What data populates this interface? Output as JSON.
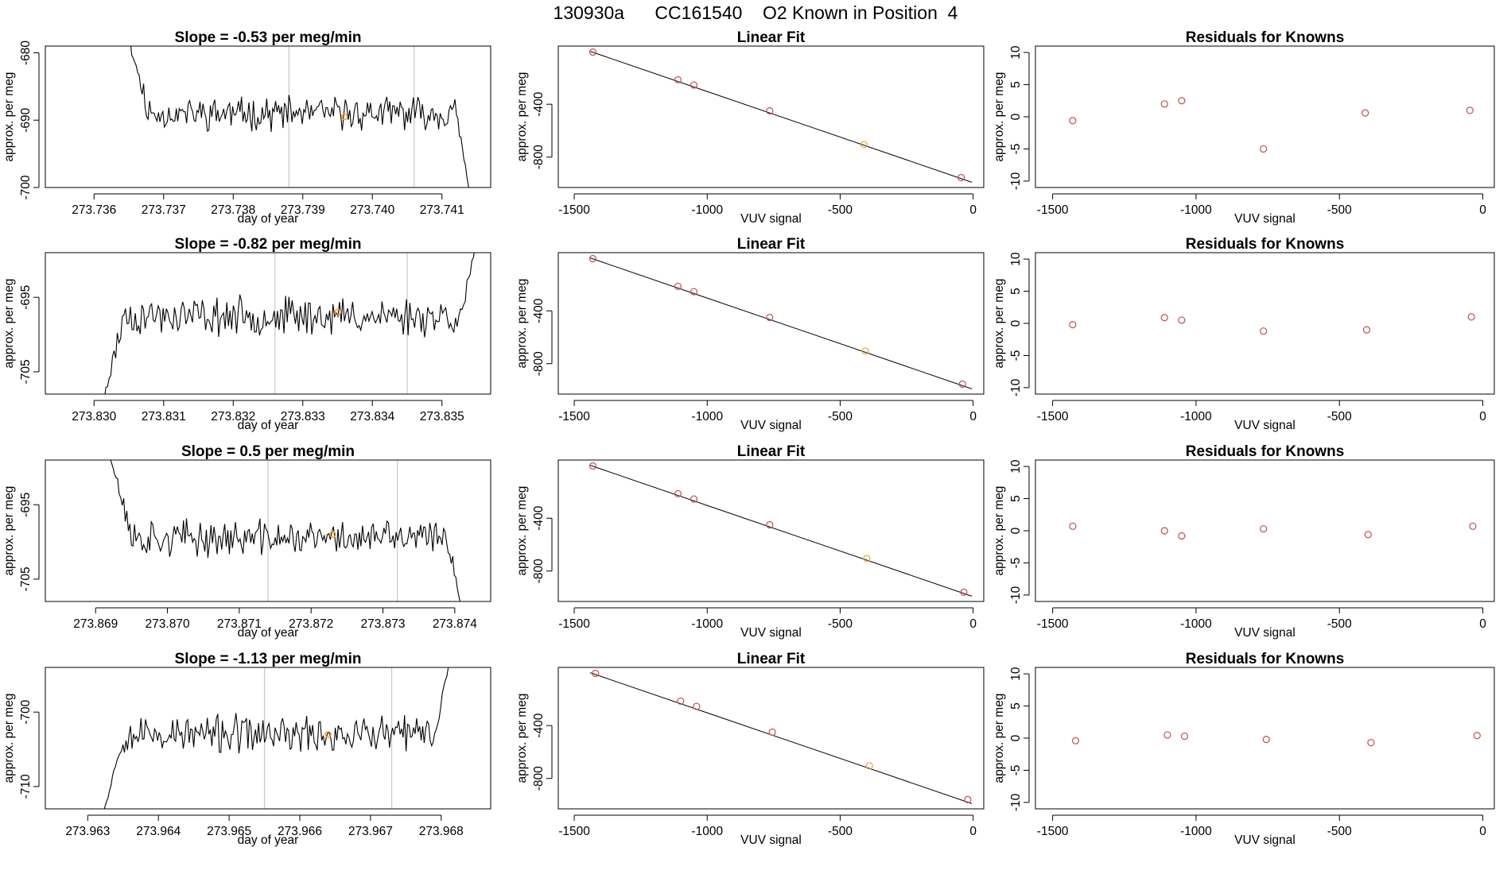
{
  "figure": {
    "title": "130930a      CC161540    O2 Known in Position  4"
  },
  "colors": {
    "trace": "#000000",
    "vline": "#c8c8c8",
    "fit_line": "#000000",
    "known_point": "#c0504d",
    "sample_point": "#f0a030",
    "axis": "#000000"
  },
  "chart_data": [
    {
      "type": "line",
      "title": "Slope =  -0.53  per meg/min",
      "xlabel": "day of year",
      "ylabel": "approx. per meg",
      "xlim": [
        273.7353,
        273.7417
      ],
      "ylim": [
        -700,
        -679
      ],
      "xticks": [
        273.736,
        273.737,
        273.738,
        273.739,
        273.74,
        273.741
      ],
      "xtick_labels": [
        "273.736",
        "273.737",
        "273.738",
        "273.739",
        "273.740",
        "273.741"
      ],
      "yticks": [
        -700,
        -690,
        -680
      ],
      "ytick_labels": [
        "-700",
        "-690",
        "-680"
      ],
      "vlines": [
        273.7388,
        273.7406
      ],
      "marker": {
        "x": 273.7396,
        "y": -689.5
      },
      "trace": {
        "x_start": 273.7365,
        "x_end": 273.7414,
        "level": -689,
        "noise": 1.8,
        "start_value": -678,
        "end_value": -701,
        "seed": 11
      }
    },
    {
      "type": "scatter",
      "title": "Linear Fit",
      "xlabel": "VUV signal",
      "ylabel": "approx. per meg",
      "xlim": [
        -1560,
        40
      ],
      "ylim": [
        -1030,
        40
      ],
      "xticks": [
        -1500,
        -1000,
        -500,
        0
      ],
      "xtick_labels": [
        "-1500",
        "-1000",
        "-500",
        "0"
      ],
      "yticks": [
        -800,
        -400
      ],
      "ytick_labels": [
        "-800",
        "-400"
      ],
      "fit": {
        "x0": -1440,
        "y0": 0,
        "x1": -5,
        "y1": -990
      },
      "points": [
        {
          "x": -1430,
          "y": -5
        },
        {
          "x": -1110,
          "y": -215
        },
        {
          "x": -1050,
          "y": -255
        },
        {
          "x": -765,
          "y": -450
        },
        {
          "x": -410,
          "y": -705,
          "sample": true
        },
        {
          "x": -45,
          "y": -955
        }
      ]
    },
    {
      "type": "scatter",
      "title": "Residuals for Knowns",
      "xlabel": "VUV signal",
      "ylabel": "approx. per meg",
      "xlim": [
        -1560,
        40
      ],
      "ylim": [
        -11,
        11
      ],
      "xticks": [
        -1500,
        -1000,
        -500,
        0
      ],
      "xtick_labels": [
        "-1500",
        "-1000",
        "-500",
        "0"
      ],
      "yticks": [
        -10,
        -5,
        0,
        5,
        10
      ],
      "ytick_labels": [
        "-10",
        "-5",
        "0",
        "5",
        "10"
      ],
      "points": [
        {
          "x": -1430,
          "y": -0.6
        },
        {
          "x": -1110,
          "y": 2.0
        },
        {
          "x": -1050,
          "y": 2.5
        },
        {
          "x": -765,
          "y": -5.0
        },
        {
          "x": -410,
          "y": 0.6
        },
        {
          "x": -45,
          "y": 1.0
        }
      ]
    },
    {
      "type": "line",
      "title": "Slope =  -0.82  per meg/min",
      "xlabel": "day of year",
      "ylabel": "approx. per meg",
      "xlim": [
        273.8293,
        273.8357
      ],
      "ylim": [
        -708,
        -689
      ],
      "xticks": [
        273.83,
        273.831,
        273.832,
        273.833,
        273.834,
        273.835
      ],
      "xtick_labels": [
        "273.830",
        "273.831",
        "273.832",
        "273.833",
        "273.834",
        "273.835"
      ],
      "yticks": [
        -705,
        -695
      ],
      "ytick_labels": [
        "-705",
        "-695"
      ],
      "vlines": [
        273.8326,
        273.8345
      ],
      "marker": {
        "x": 273.8335,
        "y": -697
      },
      "trace": {
        "x_start": 273.8301,
        "x_end": 273.8355,
        "level": -697.5,
        "noise": 1.9,
        "start_value": -710,
        "end_value": -687,
        "seed": 23
      }
    },
    {
      "type": "scatter",
      "title": "Linear Fit",
      "xlabel": "VUV signal",
      "ylabel": "approx. per meg",
      "xlim": [
        -1560,
        40
      ],
      "ylim": [
        -1030,
        40
      ],
      "xticks": [
        -1500,
        -1000,
        -500,
        0
      ],
      "xtick_labels": [
        "-1500",
        "-1000",
        "-500",
        "0"
      ],
      "yticks": [
        -800,
        -400
      ],
      "ytick_labels": [
        "-800",
        "-400"
      ],
      "fit": {
        "x0": -1440,
        "y0": 0,
        "x1": -5,
        "y1": -990
      },
      "points": [
        {
          "x": -1430,
          "y": -5
        },
        {
          "x": -1110,
          "y": -215
        },
        {
          "x": -1050,
          "y": -255
        },
        {
          "x": -765,
          "y": -450
        },
        {
          "x": -405,
          "y": -705,
          "sample": true
        },
        {
          "x": -40,
          "y": -955
        }
      ]
    },
    {
      "type": "scatter",
      "title": "Residuals for Knowns",
      "xlabel": "VUV signal",
      "ylabel": "approx. per meg",
      "xlim": [
        -1560,
        40
      ],
      "ylim": [
        -11,
        11
      ],
      "xticks": [
        -1500,
        -1000,
        -500,
        0
      ],
      "xtick_labels": [
        "-1500",
        "-1000",
        "-500",
        "0"
      ],
      "yticks": [
        -10,
        -5,
        0,
        5,
        10
      ],
      "ytick_labels": [
        "-10",
        "-5",
        "0",
        "5",
        "10"
      ],
      "points": [
        {
          "x": -1430,
          "y": -0.2
        },
        {
          "x": -1110,
          "y": 0.9
        },
        {
          "x": -1050,
          "y": 0.5
        },
        {
          "x": -765,
          "y": -1.2
        },
        {
          "x": -405,
          "y": -1.0
        },
        {
          "x": -40,
          "y": 1.0
        }
      ]
    },
    {
      "type": "line",
      "title": "Slope =  0.5  per meg/min",
      "xlabel": "day of year",
      "ylabel": "approx. per meg",
      "xlim": [
        273.8683,
        273.8745
      ],
      "ylim": [
        -708,
        -689
      ],
      "xticks": [
        273.869,
        273.87,
        273.871,
        273.872,
        273.873,
        273.874
      ],
      "xtick_labels": [
        "273.869",
        "273.870",
        "273.871",
        "273.872",
        "273.873",
        "273.874"
      ],
      "yticks": [
        -705,
        -695
      ],
      "ytick_labels": [
        "-705",
        "-695"
      ],
      "vlines": [
        273.8714,
        273.8732
      ],
      "marker": {
        "x": 273.8723,
        "y": -699
      },
      "trace": {
        "x_start": 273.8692,
        "x_end": 273.8741,
        "level": -699.5,
        "noise": 1.8,
        "start_value": -688,
        "end_value": -709,
        "seed": 37
      }
    },
    {
      "type": "scatter",
      "title": "Linear Fit",
      "xlabel": "VUV signal",
      "ylabel": "approx. per meg",
      "xlim": [
        -1560,
        40
      ],
      "ylim": [
        -1030,
        40
      ],
      "xticks": [
        -1500,
        -1000,
        -500,
        0
      ],
      "xtick_labels": [
        "-1500",
        "-1000",
        "-500",
        "0"
      ],
      "yticks": [
        -800,
        -400
      ],
      "ytick_labels": [
        "-800",
        "-400"
      ],
      "fit": {
        "x0": -1440,
        "y0": 0,
        "x1": -5,
        "y1": -990
      },
      "points": [
        {
          "x": -1430,
          "y": -5
        },
        {
          "x": -1110,
          "y": -215
        },
        {
          "x": -1050,
          "y": -255
        },
        {
          "x": -765,
          "y": -450
        },
        {
          "x": -400,
          "y": -705,
          "sample": true
        },
        {
          "x": -35,
          "y": -960
        }
      ]
    },
    {
      "type": "scatter",
      "title": "Residuals for Knowns",
      "xlabel": "VUV signal",
      "ylabel": "approx. per meg",
      "xlim": [
        -1560,
        40
      ],
      "ylim": [
        -11,
        11
      ],
      "xticks": [
        -1500,
        -1000,
        -500,
        0
      ],
      "xtick_labels": [
        "-1500",
        "-1000",
        "-500",
        "0"
      ],
      "yticks": [
        -10,
        -5,
        0,
        5,
        10
      ],
      "ytick_labels": [
        "-10",
        "-5",
        "0",
        "5",
        "10"
      ],
      "points": [
        {
          "x": -1430,
          "y": 0.7
        },
        {
          "x": -1110,
          "y": 0.0
        },
        {
          "x": -1050,
          "y": -0.8
        },
        {
          "x": -765,
          "y": 0.3
        },
        {
          "x": -400,
          "y": -0.6
        },
        {
          "x": -35,
          "y": 0.7
        }
      ]
    },
    {
      "type": "line",
      "title": "Slope =  -1.13  per meg/min",
      "xlabel": "day of year",
      "ylabel": "approx. per meg",
      "xlim": [
        273.9624,
        273.9687
      ],
      "ylim": [
        -713,
        -694
      ],
      "xticks": [
        273.963,
        273.964,
        273.965,
        273.966,
        273.967,
        273.968
      ],
      "xtick_labels": [
        "273.963",
        "273.964",
        "273.965",
        "273.966",
        "273.967",
        "273.968"
      ],
      "yticks": [
        -710,
        -700
      ],
      "ytick_labels": [
        "-710",
        "-700"
      ],
      "vlines": [
        273.9655,
        273.9673
      ],
      "marker": {
        "x": 273.9664,
        "y": -703
      },
      "trace": {
        "x_start": 273.9632,
        "x_end": 273.9681,
        "level": -703,
        "noise": 1.9,
        "start_value": -714,
        "end_value": -694,
        "seed": 53
      }
    },
    {
      "type": "scatter",
      "title": "Linear Fit",
      "xlabel": "VUV signal",
      "ylabel": "approx. per meg",
      "xlim": [
        -1560,
        40
      ],
      "ylim": [
        -1030,
        40
      ],
      "xticks": [
        -1500,
        -1000,
        -500,
        0
      ],
      "xtick_labels": [
        "-1500",
        "-1000",
        "-500",
        "0"
      ],
      "yticks": [
        -800,
        -400
      ],
      "ytick_labels": [
        "-800",
        "-400"
      ],
      "fit": {
        "x0": -1440,
        "y0": 0,
        "x1": -5,
        "y1": -990
      },
      "points": [
        {
          "x": -1420,
          "y": -5
        },
        {
          "x": -1100,
          "y": -215
        },
        {
          "x": -1040,
          "y": -255
        },
        {
          "x": -755,
          "y": -450
        },
        {
          "x": -390,
          "y": -705,
          "sample": true
        },
        {
          "x": -20,
          "y": -960
        }
      ]
    },
    {
      "type": "scatter",
      "title": "Residuals for Knowns",
      "xlabel": "VUV signal",
      "ylabel": "approx. per meg",
      "xlim": [
        -1560,
        40
      ],
      "ylim": [
        -11,
        11
      ],
      "xticks": [
        -1500,
        -1000,
        -500,
        0
      ],
      "xtick_labels": [
        "-1500",
        "-1000",
        "-500",
        "0"
      ],
      "yticks": [
        -10,
        -5,
        0,
        5,
        10
      ],
      "ytick_labels": [
        "-10",
        "-5",
        "0",
        "5",
        "10"
      ],
      "points": [
        {
          "x": -1420,
          "y": -0.4
        },
        {
          "x": -1100,
          "y": 0.5
        },
        {
          "x": -1040,
          "y": 0.3
        },
        {
          "x": -755,
          "y": -0.2
        },
        {
          "x": -390,
          "y": -0.7
        },
        {
          "x": -20,
          "y": 0.4
        }
      ]
    }
  ]
}
